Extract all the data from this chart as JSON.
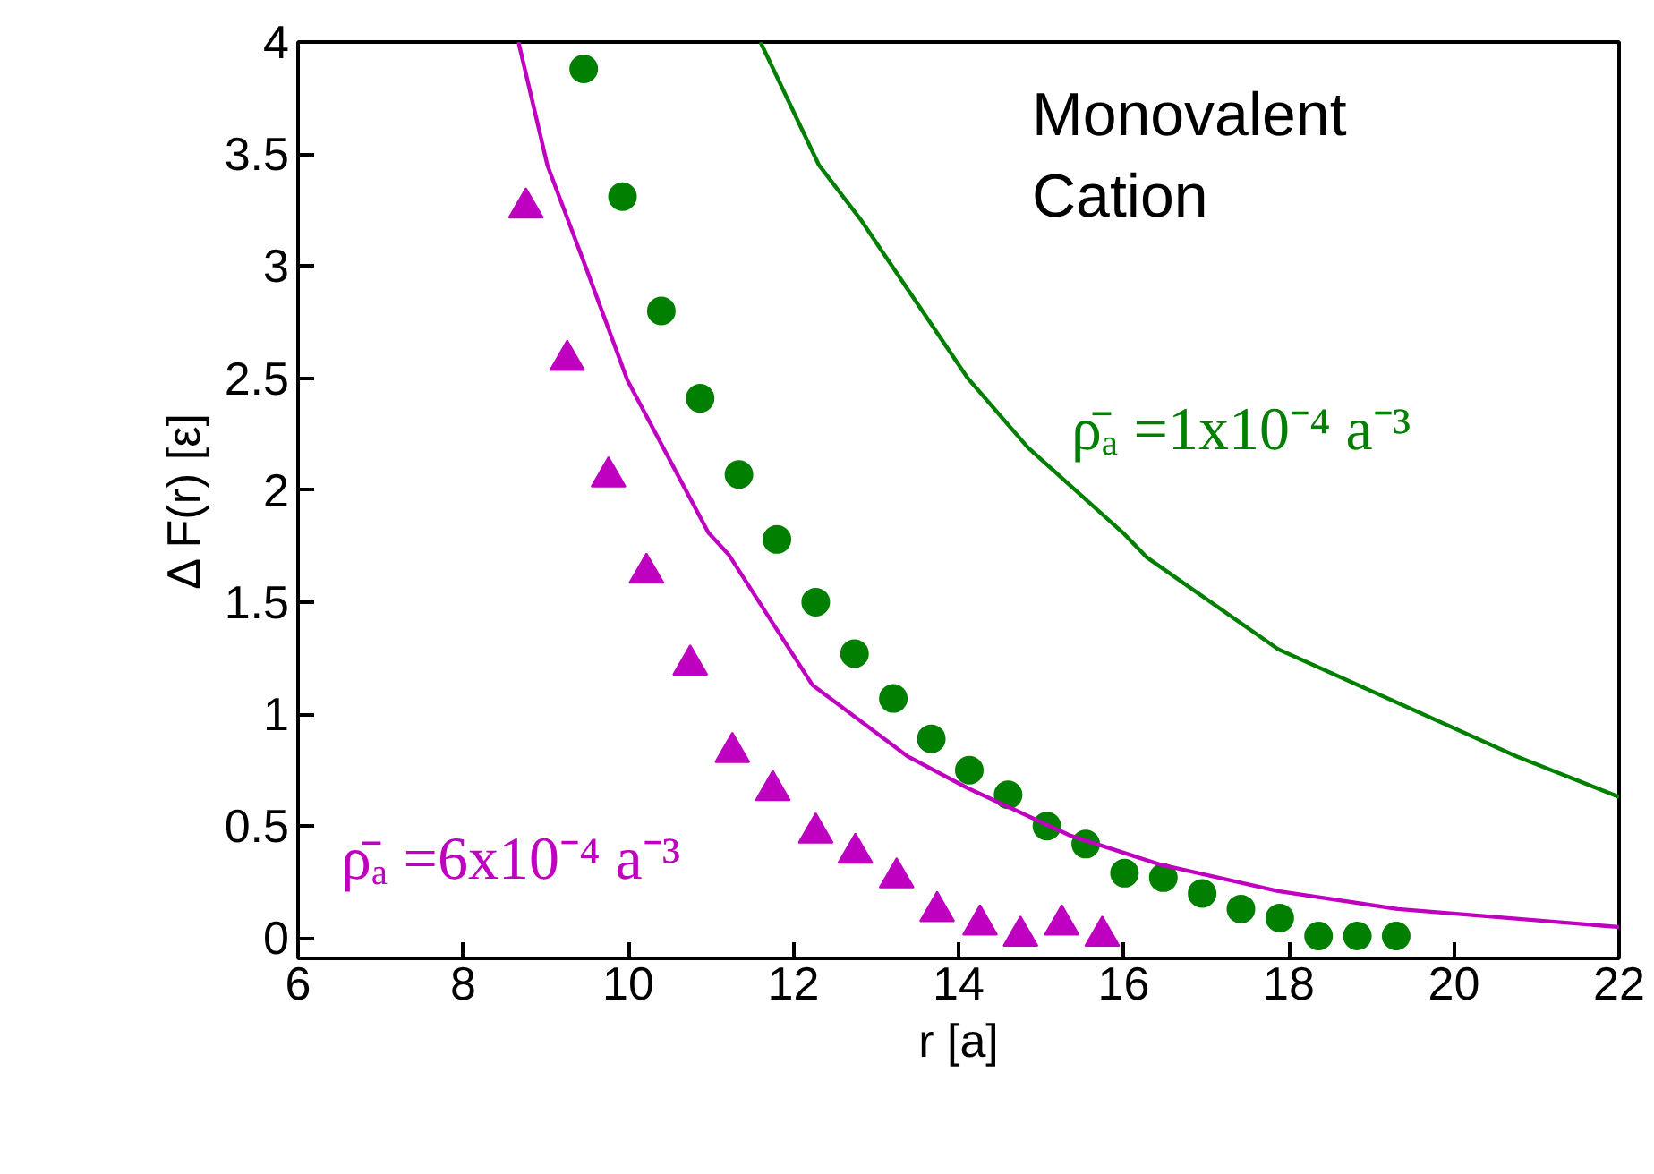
{
  "chart_data": {
    "type": "scatter",
    "xlabel": "r [a]",
    "ylabel": "Δ F(r) [ε]",
    "xlim": [
      6,
      22
    ],
    "ylim": [
      -0.09,
      4
    ],
    "xticks": [
      6,
      8,
      10,
      12,
      14,
      16,
      18,
      20,
      22
    ],
    "yticks": [
      0,
      0.5,
      1,
      1.5,
      2,
      2.5,
      3,
      3.5,
      4
    ],
    "grid": false,
    "legend": false,
    "series": [
      {
        "marker": "circle",
        "color": "#007f00",
        "x": [
          9.46,
          9.93,
          10.4,
          10.87,
          11.34,
          11.8,
          12.27,
          12.74,
          13.21,
          13.67,
          14.13,
          14.6,
          15.07,
          15.54,
          16.01,
          16.48,
          16.95,
          17.42,
          17.89,
          18.36,
          18.83,
          19.3
        ],
        "values": [
          3.88,
          3.31,
          2.8,
          2.41,
          2.07,
          1.78,
          1.5,
          1.27,
          1.07,
          0.89,
          0.75,
          0.64,
          0.5,
          0.42,
          0.29,
          0.27,
          0.2,
          0.13,
          0.09,
          0.01,
          0.01,
          0.01
        ]
      },
      {
        "marker": "triangle",
        "color": "#c000c0",
        "x": [
          8.76,
          9.26,
          9.76,
          10.22,
          10.75,
          11.26,
          11.75,
          12.27,
          12.75,
          13.25,
          13.74,
          14.26,
          14.75,
          15.25,
          15.74
        ],
        "values": [
          3.26,
          2.58,
          2.06,
          1.63,
          1.22,
          0.83,
          0.66,
          0.47,
          0.38,
          0.27,
          0.12,
          0.06,
          0.01,
          0.06,
          0.01
        ]
      },
      {
        "type": "line",
        "name": "ρ̄ₐ =6x10⁻⁴ a⁻³",
        "marker": "none",
        "line_style": "solid",
        "color": "#c000c0",
        "x": [
          8.67,
          9.02,
          9.49,
          9.99,
          10.97,
          11.22,
          12.23,
          13.39,
          14.11,
          15.34,
          16.43,
          17.87,
          19.32,
          22.0
        ],
        "values": [
          4.0,
          3.45,
          2.99,
          2.49,
          1.81,
          1.71,
          1.13,
          0.81,
          0.67,
          0.46,
          0.33,
          0.21,
          0.13,
          0.05
        ]
      },
      {
        "type": "line",
        "name": "ρ̄ₐ =1x10⁻⁴ a⁻³",
        "marker": "none",
        "line_style": "solid",
        "color": "#007f00",
        "x": [
          11.6,
          12.31,
          12.81,
          14.11,
          14.84,
          15.99,
          16.28,
          17.87,
          19.32,
          20.77,
          22.0
        ],
        "values": [
          4.0,
          3.45,
          3.21,
          2.5,
          2.19,
          1.81,
          1.7,
          1.29,
          1.05,
          0.81,
          0.63
        ]
      }
    ],
    "annotations": [
      "Monovalent\nCation"
    ]
  }
}
